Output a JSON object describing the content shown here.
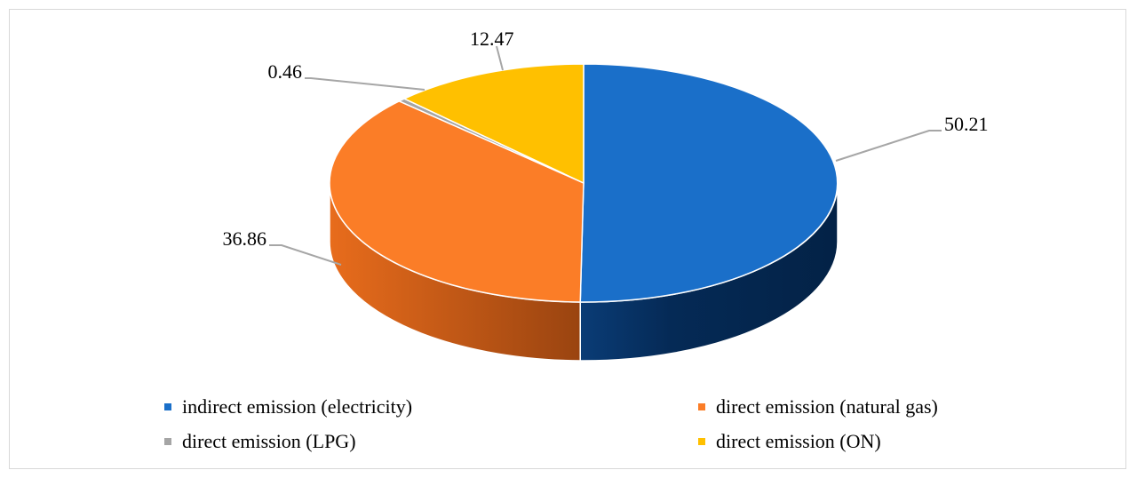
{
  "chart_data": {
    "type": "pie",
    "title": "",
    "style": "3d",
    "categories": [
      "indirect emission (electricity)",
      "direct emission (natural gas)",
      "direct emission (LPG)",
      "direct emission (ON)"
    ],
    "values": [
      50.21,
      36.86,
      0.46,
      12.47
    ],
    "value_labels": [
      "50.21",
      "36.86",
      "0.46",
      "12.47"
    ],
    "colors": [
      "#1a6fc9",
      "#fb7d27",
      "#a5a5a5",
      "#ffc000"
    ],
    "legend_position": "bottom"
  }
}
